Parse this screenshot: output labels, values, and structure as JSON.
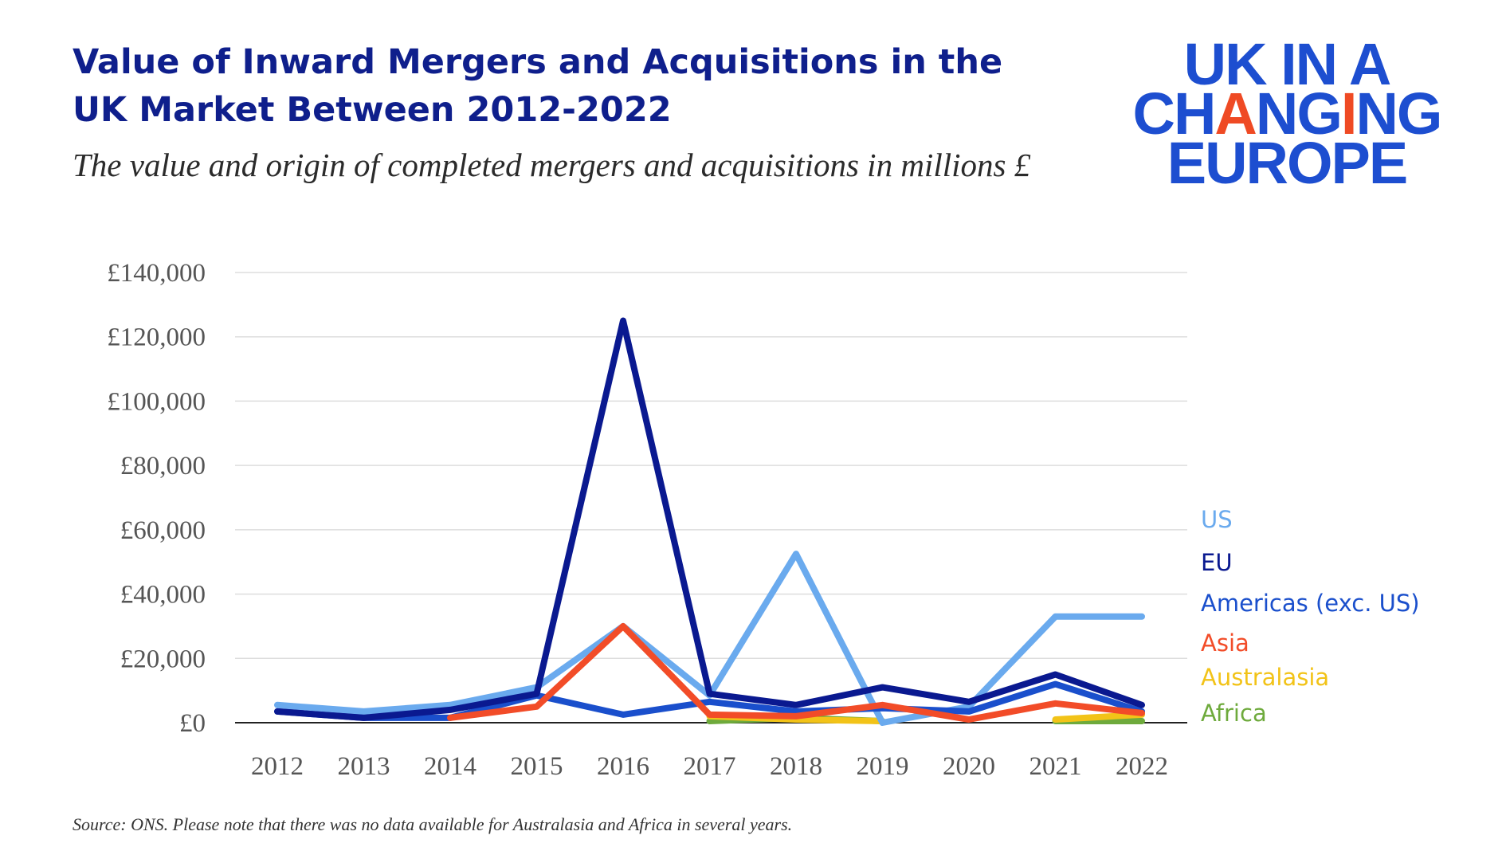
{
  "header": {
    "title": "Value of Inward Mergers and Acquisitions in the UK Market Between 2012-2022",
    "subtitle": "The value and origin of completed mergers and acquisitions in millions £"
  },
  "logo": {
    "line1": "UK IN A",
    "line2_a": "CH",
    "line2_b": "A",
    "line2_c": "N",
    "line2_d": "G",
    "line2_e": "I",
    "line2_f": "NG",
    "line3": "EUROPE",
    "brand_color": "#1d4ed0",
    "accent_color": "#ef4a24"
  },
  "source": "Source: ONS. Please note that there was no data available for Australasia and Africa in several years.",
  "chart_data": {
    "type": "line",
    "title": "",
    "xlabel": "",
    "ylabel": "",
    "categories": [
      "2012",
      "2013",
      "2014",
      "2015",
      "2016",
      "2017",
      "2018",
      "2019",
      "2020",
      "2021",
      "2022"
    ],
    "ylim": [
      0,
      140000
    ],
    "yticks": [
      0,
      20000,
      40000,
      60000,
      80000,
      100000,
      120000,
      140000
    ],
    "ytick_labels": [
      "£0",
      "£20,000",
      "£40,000",
      "£60,000",
      "£80,000",
      "£100,000",
      "£120,000",
      "£140,000"
    ],
    "grid": true,
    "legend_position": "right",
    "series": [
      {
        "name": "US",
        "color": "#6aaaee",
        "values": [
          5500,
          3500,
          5500,
          11000,
          30000,
          8500,
          52500,
          0,
          5000,
          33000,
          33000
        ]
      },
      {
        "name": "EU",
        "color": "#0a1990",
        "values": [
          3500,
          1500,
          4000,
          9000,
          125000,
          9000,
          5500,
          11000,
          6500,
          15000,
          5500
        ]
      },
      {
        "name": "Americas (exc. US)",
        "color": "#1a4fcc",
        "values": [
          3500,
          1500,
          1500,
          8500,
          2500,
          6500,
          3500,
          4500,
          3500,
          12000,
          3500
        ]
      },
      {
        "name": "Asia",
        "color": "#f24c28",
        "values": [
          null,
          null,
          1500,
          5000,
          30000,
          2500,
          2000,
          5500,
          1000,
          6000,
          3000
        ]
      },
      {
        "name": "Australasia",
        "color": "#f2c318",
        "values": [
          null,
          null,
          null,
          null,
          null,
          2000,
          1000,
          500,
          null,
          1000,
          2500
        ]
      },
      {
        "name": "Africa",
        "color": "#6eaa3c",
        "values": [
          null,
          null,
          null,
          null,
          null,
          500,
          1500,
          500,
          null,
          500,
          500
        ]
      }
    ]
  }
}
